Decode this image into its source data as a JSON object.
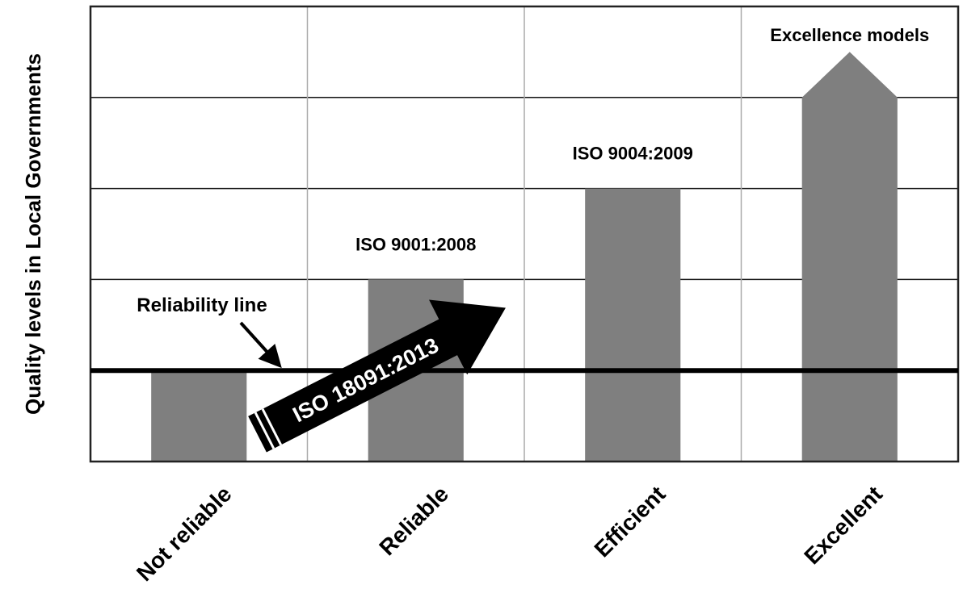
{
  "chart_data": {
    "type": "bar",
    "ylabel": "Quality levels in Local Governments",
    "categories": [
      "Not reliable",
      "Reliable",
      "Efficient",
      "Excellent"
    ],
    "values": [
      1,
      2,
      3,
      4
    ],
    "ylim": [
      0,
      5
    ],
    "bar_labels": [
      "",
      "ISO 9001:2008",
      "ISO 9004:2009",
      "Excellence models"
    ],
    "last_bar_shape": "arrow",
    "reference_line": {
      "label": "Reliability line",
      "value": 1
    },
    "transition_arrow": {
      "label": "ISO 18091:2013",
      "from": "Not reliable",
      "to": "Reliable"
    },
    "grid": true,
    "bar_color": "#7f7f7f",
    "line_color": "#000000"
  }
}
